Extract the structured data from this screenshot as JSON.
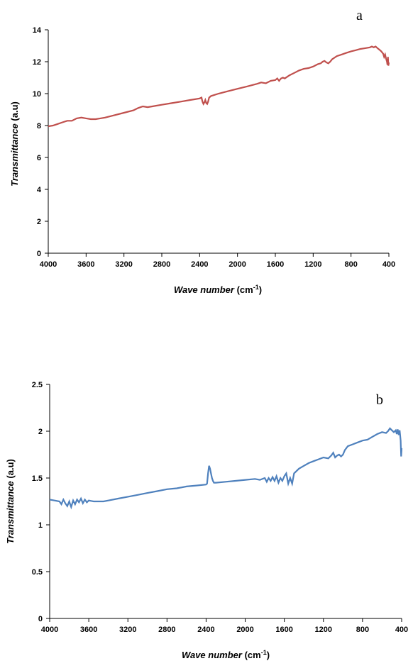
{
  "chart_data": [
    {
      "type": "line",
      "panel_label": "a",
      "xlabel_italic": "Wave number",
      "xlabel_unit": "(cm",
      "xlabel_sup": "-1",
      "xlabel_close": ")",
      "ylabel_italic": "Transmittance",
      "ylabel_unit": " (a.u)",
      "xlim": [
        4000,
        400
      ],
      "ylim": [
        0,
        14
      ],
      "x_ticks": [
        "4000",
        "3600",
        "3200",
        "2800",
        "2400",
        "2000",
        "1600",
        "1200",
        "800",
        "400"
      ],
      "y_ticks": [
        "0",
        "2",
        "4",
        "6",
        "8",
        "10",
        "12",
        "14"
      ],
      "color": "#c0504d",
      "series": [
        {
          "x": [
            4000,
            3950,
            3900,
            3850,
            3800,
            3750,
            3700,
            3650,
            3600,
            3550,
            3500,
            3450,
            3400,
            3300,
            3200,
            3100,
            3050,
            3000,
            2950,
            2900,
            2800,
            2700,
            2600,
            2500,
            2400,
            2380,
            2370,
            2360,
            2350,
            2340,
            2330,
            2320,
            2310,
            2300,
            2280,
            2200,
            2100,
            2000,
            1900,
            1800,
            1750,
            1700,
            1650,
            1600,
            1580,
            1560,
            1540,
            1520,
            1500,
            1450,
            1400,
            1350,
            1300,
            1250,
            1200,
            1150,
            1120,
            1100,
            1080,
            1060,
            1040,
            1020,
            1000,
            950,
            900,
            850,
            800,
            750,
            700,
            650,
            600,
            580,
            560,
            540,
            520,
            500,
            480,
            460,
            450,
            440,
            430,
            420,
            415,
            410,
            405,
            400
          ],
          "y": [
            7.95,
            8.0,
            8.1,
            8.2,
            8.3,
            8.3,
            8.45,
            8.5,
            8.45,
            8.4,
            8.4,
            8.45,
            8.5,
            8.65,
            8.8,
            8.95,
            9.1,
            9.2,
            9.15,
            9.2,
            9.3,
            9.4,
            9.5,
            9.6,
            9.7,
            9.75,
            9.5,
            9.35,
            9.45,
            9.6,
            9.4,
            9.35,
            9.5,
            9.75,
            9.85,
            10.0,
            10.15,
            10.3,
            10.45,
            10.6,
            10.7,
            10.65,
            10.8,
            10.85,
            10.95,
            10.8,
            10.95,
            11.0,
            10.95,
            11.15,
            11.3,
            11.45,
            11.55,
            11.6,
            11.7,
            11.85,
            11.9,
            12.0,
            12.05,
            11.95,
            11.9,
            12.0,
            12.15,
            12.35,
            12.45,
            12.55,
            12.65,
            12.72,
            12.8,
            12.85,
            12.9,
            12.95,
            12.9,
            12.95,
            12.85,
            12.75,
            12.65,
            12.5,
            12.3,
            12.45,
            12.2,
            12.0,
            11.8,
            12.3,
            11.75,
            11.95
          ]
        }
      ]
    },
    {
      "type": "line",
      "panel_label": "b",
      "xlabel_italic": "Wave number",
      "xlabel_unit": "(cm",
      "xlabel_sup": "-1",
      "xlabel_close": ")",
      "ylabel_italic": "Transmittance",
      "ylabel_unit": " (a.u)",
      "xlim": [
        4000,
        400
      ],
      "ylim": [
        0,
        2.5
      ],
      "x_ticks": [
        "4000",
        "3600",
        "3200",
        "2800",
        "2400",
        "2000",
        "1600",
        "1200",
        "800",
        "400"
      ],
      "y_ticks": [
        "0",
        "0.5",
        "1",
        "1.5",
        "2",
        "2.5"
      ],
      "color": "#4f81bd",
      "series": [
        {
          "x": [
            4000,
            3950,
            3900,
            3880,
            3860,
            3840,
            3820,
            3800,
            3790,
            3780,
            3760,
            3740,
            3720,
            3700,
            3680,
            3660,
            3640,
            3620,
            3600,
            3550,
            3500,
            3450,
            3400,
            3300,
            3200,
            3100,
            3000,
            2900,
            2800,
            2700,
            2600,
            2500,
            2400,
            2390,
            2380,
            2370,
            2360,
            2350,
            2340,
            2330,
            2320,
            2300,
            2200,
            2100,
            2000,
            1900,
            1850,
            1800,
            1780,
            1760,
            1740,
            1720,
            1700,
            1680,
            1660,
            1640,
            1620,
            1600,
            1580,
            1560,
            1540,
            1520,
            1500,
            1450,
            1400,
            1350,
            1300,
            1250,
            1200,
            1150,
            1120,
            1100,
            1080,
            1060,
            1040,
            1020,
            1000,
            980,
            950,
            900,
            850,
            800,
            750,
            700,
            650,
            600,
            560,
            540,
            520,
            500,
            480,
            460,
            450,
            440,
            430,
            420,
            410,
            405,
            400
          ],
          "y": [
            1.27,
            1.26,
            1.25,
            1.22,
            1.27,
            1.23,
            1.2,
            1.25,
            1.22,
            1.19,
            1.26,
            1.22,
            1.27,
            1.24,
            1.28,
            1.23,
            1.27,
            1.24,
            1.26,
            1.25,
            1.25,
            1.25,
            1.26,
            1.28,
            1.3,
            1.32,
            1.34,
            1.36,
            1.38,
            1.39,
            1.41,
            1.42,
            1.43,
            1.44,
            1.55,
            1.63,
            1.6,
            1.55,
            1.5,
            1.47,
            1.45,
            1.45,
            1.46,
            1.47,
            1.48,
            1.49,
            1.48,
            1.5,
            1.46,
            1.5,
            1.47,
            1.51,
            1.47,
            1.52,
            1.45,
            1.5,
            1.47,
            1.52,
            1.55,
            1.44,
            1.5,
            1.44,
            1.55,
            1.6,
            1.63,
            1.66,
            1.68,
            1.7,
            1.72,
            1.71,
            1.74,
            1.77,
            1.72,
            1.74,
            1.75,
            1.73,
            1.75,
            1.8,
            1.84,
            1.86,
            1.88,
            1.9,
            1.91,
            1.94,
            1.97,
            1.99,
            1.98,
            2.0,
            2.03,
            2.01,
            1.99,
            2.01,
            1.97,
            2.02,
            1.96,
            2.01,
            1.9,
            1.73,
            1.82
          ]
        }
      ]
    }
  ]
}
